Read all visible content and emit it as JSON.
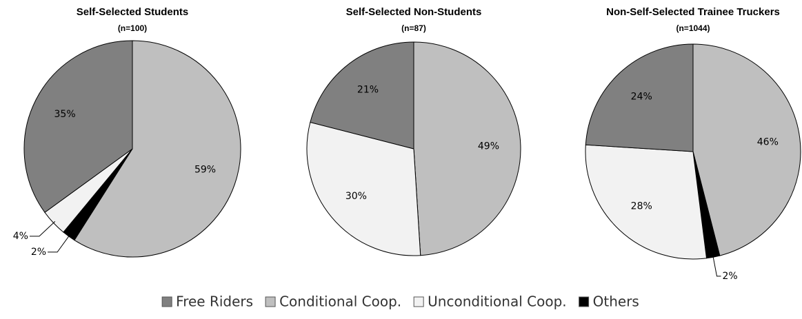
{
  "legend": [
    {
      "name": "Free Riders",
      "color": "#808080"
    },
    {
      "name": "Conditional Coop.",
      "color": "#bfbfbf"
    },
    {
      "name": "Unconditional Coop.",
      "color": "#f2f2f2"
    },
    {
      "name": "Others",
      "color": "#000000"
    }
  ],
  "chart_data": [
    {
      "type": "pie",
      "title": "Self-Selected Students",
      "subtitle": "(n=100)",
      "categories": [
        "Conditional Coop.",
        "Others",
        "Unconditional Coop.",
        "Free Riders"
      ],
      "values": [
        59,
        2,
        4,
        35
      ],
      "value_labels": [
        "59%",
        "2%",
        "4%",
        "35%"
      ]
    },
    {
      "type": "pie",
      "title": "Self-Selected Non-Students",
      "subtitle": "(n=87)",
      "categories": [
        "Conditional Coop.",
        "Others",
        "Unconditional Coop.",
        "Free Riders"
      ],
      "values": [
        49,
        0,
        30,
        21
      ],
      "value_labels": [
        "49%",
        null,
        "30%",
        "21%"
      ]
    },
    {
      "type": "pie",
      "title": "Non-Self-Selected Trainee Truckers",
      "subtitle": "(n=1044)",
      "categories": [
        "Conditional Coop.",
        "Others",
        "Unconditional Coop.",
        "Free Riders"
      ],
      "values": [
        46,
        2,
        28,
        24
      ],
      "value_labels": [
        "46%",
        "2%",
        "28%",
        "24%"
      ]
    }
  ]
}
